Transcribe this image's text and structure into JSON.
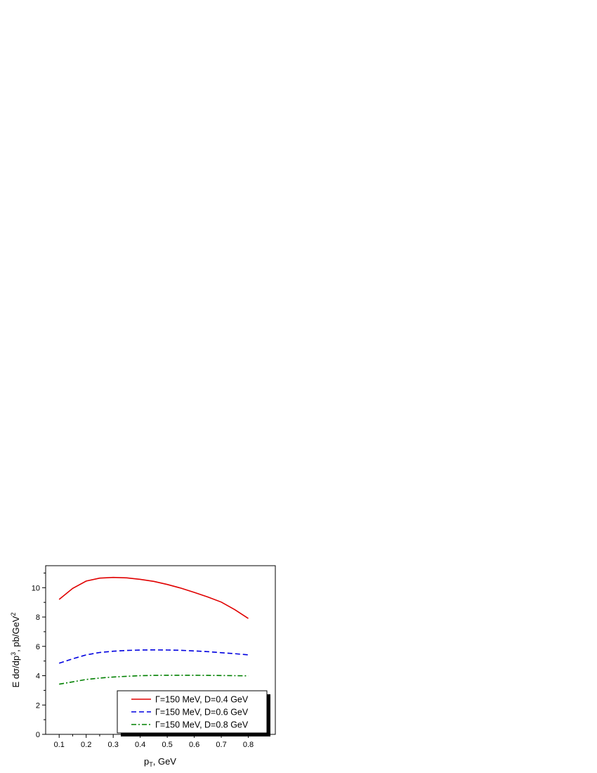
{
  "chart_data": {
    "type": "line",
    "title": "",
    "xlabel": {
      "main": "p",
      "sub": "T",
      "rest": ", GeV"
    },
    "ylabel": {
      "main": "E dσ/dp",
      "sup": "3",
      "mid": ",  pb/GeV",
      "sup2": "2"
    },
    "xlim": [
      0.05,
      0.9
    ],
    "ylim": [
      0,
      11.5
    ],
    "xticks": [
      0.1,
      0.2,
      0.3,
      0.4,
      0.5,
      0.6,
      0.7,
      0.8
    ],
    "xtick_labels": [
      "0.1",
      "0.2",
      "0.3",
      "0.4",
      "0.5",
      "0.6",
      "0.7",
      "0.8"
    ],
    "yticks": [
      0,
      2,
      4,
      6,
      8,
      10
    ],
    "ytick_labels": [
      "0",
      "2",
      "4",
      "6",
      "8",
      "10"
    ],
    "grid": false,
    "legend_position": "bottom-right",
    "x": [
      0.1,
      0.15,
      0.2,
      0.25,
      0.3,
      0.35,
      0.4,
      0.45,
      0.5,
      0.55,
      0.6,
      0.65,
      0.7,
      0.75,
      0.8
    ],
    "series": [
      {
        "name": "Γ=150 MeV, D=0.4 GeV",
        "color": "#e00000",
        "style": "solid",
        "values": [
          9.2,
          9.95,
          10.45,
          10.65,
          10.7,
          10.67,
          10.57,
          10.43,
          10.22,
          9.97,
          9.68,
          9.37,
          9.02,
          8.5,
          7.9
        ]
      },
      {
        "name": "Γ=150 MeV, D=0.6 GeV",
        "color": "#0000e0",
        "style": "dashed",
        "values": [
          4.85,
          5.15,
          5.42,
          5.58,
          5.67,
          5.72,
          5.75,
          5.76,
          5.75,
          5.73,
          5.69,
          5.64,
          5.57,
          5.5,
          5.42
        ]
      },
      {
        "name": "Γ=150 MeV, D=0.8 GeV",
        "color": "#008000",
        "style": "dashdot",
        "values": [
          3.42,
          3.58,
          3.74,
          3.84,
          3.91,
          3.96,
          4.0,
          4.02,
          4.03,
          4.03,
          4.03,
          4.02,
          4.01,
          4.0,
          3.99
        ]
      }
    ]
  }
}
